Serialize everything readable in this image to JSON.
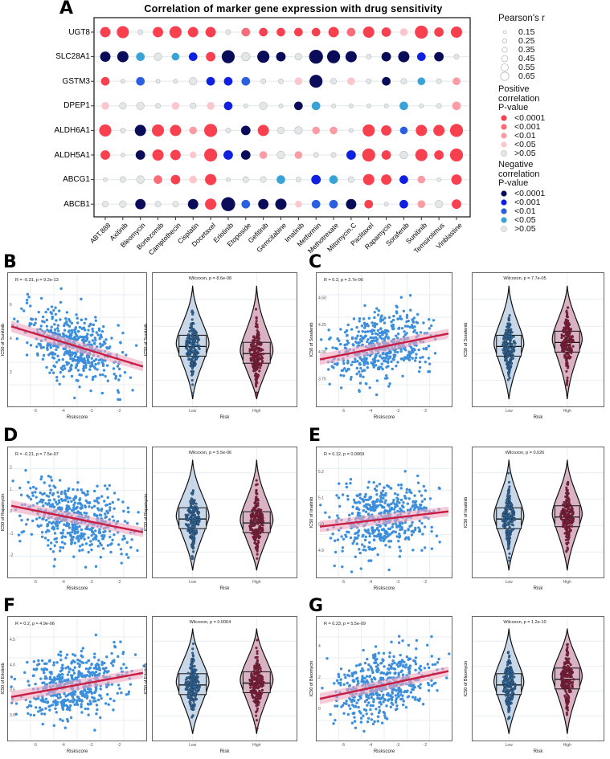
{
  "panel_letters": [
    "A",
    "B",
    "C",
    "D",
    "E",
    "F",
    "G"
  ],
  "colors": {
    "P4": "#f8404f",
    "P3": "#f96c78",
    "P2": "#fb9ca4",
    "P1": "#fcc7cc",
    "ns": "#e3e7e8",
    "N4": "#0a0c5a",
    "N3": "#1020e0",
    "N2": "#2a5fe0",
    "N1": "#3aa3d6",
    "low_fill": "#c8d8e8",
    "low_point": "#2d6aa3",
    "high_fill": "#d9b2c3",
    "high_point": "#8e1a3c",
    "scatter_point": "#3d8fdc",
    "reg_line": "#c81e45",
    "reg_band": "#f0a8c0"
  },
  "chart_data": [
    {
      "type": "dot-matrix",
      "title": "Correlation of marker gene expression with drug sensitivity",
      "genes": [
        "UGT8",
        "SLC28A1",
        "GSTM3",
        "DPEP1",
        "ALDH6A1",
        "ALDH5A1",
        "ABCG1",
        "ABCB1"
      ],
      "drugs": [
        "ABT.888",
        "Axitinib",
        "Bleomycin",
        "Bortezomib",
        "Camptothecin",
        "Cisplatin",
        "Docetaxel",
        "Erlotinib",
        "Etoposide",
        "Gefitinib",
        "Gemcitabine",
        "Imatinib",
        "Metformin",
        "Methotrexate",
        "Mitomycin.C",
        "Paclitaxel",
        "Rapamycin",
        "Sorafenib",
        "Sunitinib",
        "Temsirolimus",
        "Vinblastine"
      ],
      "cells": [
        [
          [
            "P4",
            0.45
          ],
          [
            "P4",
            0.55
          ],
          [
            "ns",
            0.15
          ],
          [
            "P4",
            0.45
          ],
          [
            "P4",
            0.55
          ],
          [
            "P4",
            0.45
          ],
          [
            "P4",
            0.45
          ],
          [
            "ns",
            0.15
          ],
          [
            "P3",
            0.35
          ],
          [
            "P4",
            0.35
          ],
          [
            "P4",
            0.35
          ],
          [
            "P4",
            0.35
          ],
          [
            "P4",
            0.35
          ],
          [
            "P4",
            0.45
          ],
          [
            "P3",
            0.35
          ],
          [
            "P4",
            0.5
          ],
          [
            "P4",
            0.4
          ],
          [
            "P1",
            0.3
          ],
          [
            "P4",
            0.6
          ],
          [
            "P4",
            0.4
          ],
          [
            "P4",
            0.5
          ]
        ],
        [
          [
            "N4",
            0.45
          ],
          [
            "N4",
            0.5
          ],
          [
            "N1",
            0.35
          ],
          [
            "ns",
            0.3
          ],
          [
            "N1",
            0.3
          ],
          [
            "N3",
            0.35
          ],
          [
            "P4",
            0.4
          ],
          [
            "N4",
            0.6
          ],
          [
            "ns",
            0.35
          ],
          [
            "N4",
            0.55
          ],
          [
            "N4",
            0.4
          ],
          [
            "ns",
            0.25
          ],
          [
            "N4",
            0.65
          ],
          [
            "N4",
            0.6
          ],
          [
            "N4",
            0.5
          ],
          [
            "ns",
            0.15
          ],
          [
            "N4",
            0.4
          ],
          [
            "N4",
            0.5
          ],
          [
            "N3",
            0.35
          ],
          [
            "N4",
            0.4
          ],
          [
            "ns",
            0.15
          ]
        ],
        [
          [
            "P4",
            0.35
          ],
          [
            "ns",
            0.1
          ],
          [
            "N2",
            0.35
          ],
          [
            "ns",
            0.1
          ],
          [
            "ns",
            0.1
          ],
          [
            "ns",
            0.3
          ],
          [
            "N3",
            0.35
          ],
          [
            "N3",
            0.35
          ],
          [
            "N2",
            0.35
          ],
          [
            "ns",
            0.15
          ],
          [
            "ns",
            0.15
          ],
          [
            "P1",
            0.3
          ],
          [
            "N4",
            0.6
          ],
          [
            "ns",
            0.2
          ],
          [
            "P1",
            0.3
          ],
          [
            "ns",
            0.15
          ],
          [
            "N4",
            0.35
          ],
          [
            "ns",
            0.2
          ],
          [
            "N1",
            0.3
          ],
          [
            "ns",
            0.15
          ],
          [
            "P2",
            0.3
          ]
        ],
        [
          [
            "P1",
            0.3
          ],
          [
            "ns",
            0.25
          ],
          [
            "ns",
            0.3
          ],
          [
            "ns",
            0.15
          ],
          [
            "P1",
            0.3
          ],
          [
            "ns",
            0.2
          ],
          [
            "P1",
            0.3
          ],
          [
            "N3",
            0.35
          ],
          [
            "ns",
            0.1
          ],
          [
            "ns",
            0.3
          ],
          [
            "ns",
            0.1
          ],
          [
            "N4",
            0.35
          ],
          [
            "N1",
            0.35
          ],
          [
            "ns",
            0.1
          ],
          [
            "ns",
            0.1
          ],
          [
            "ns",
            0.1
          ],
          [
            "ns",
            0.1
          ],
          [
            "N1",
            0.35
          ],
          [
            "ns",
            0.1
          ],
          [
            "ns",
            0.15
          ],
          [
            "P2",
            0.35
          ]
        ],
        [
          [
            "P4",
            0.55
          ],
          [
            "ns",
            0.15
          ],
          [
            "N4",
            0.5
          ],
          [
            "P4",
            0.55
          ],
          [
            "P4",
            0.5
          ],
          [
            "P2",
            0.3
          ],
          [
            "P4",
            0.6
          ],
          [
            "ns",
            0.15
          ],
          [
            "N4",
            0.4
          ],
          [
            "P4",
            0.5
          ],
          [
            "ns",
            0.25
          ],
          [
            "ns",
            0.3
          ],
          [
            "P2",
            0.3
          ],
          [
            "P2",
            0.3
          ],
          [
            "ns",
            0.1
          ],
          [
            "P4",
            0.55
          ],
          [
            "P4",
            0.45
          ],
          [
            "N2",
            0.3
          ],
          [
            "P4",
            0.5
          ],
          [
            "P4",
            0.5
          ],
          [
            "P4",
            0.6
          ]
        ],
        [
          [
            "P4",
            0.4
          ],
          [
            "ns",
            0.1
          ],
          [
            "N4",
            0.4
          ],
          [
            "P4",
            0.5
          ],
          [
            "P4",
            0.45
          ],
          [
            "P1",
            0.25
          ],
          [
            "P4",
            0.6
          ],
          [
            "N3",
            0.4
          ],
          [
            "N4",
            0.4
          ],
          [
            "P2",
            0.3
          ],
          [
            "ns",
            0.3
          ],
          [
            "P2",
            0.3
          ],
          [
            "ns",
            0.15
          ],
          [
            "ns",
            0.15
          ],
          [
            "N3",
            0.4
          ],
          [
            "P4",
            0.6
          ],
          [
            "P4",
            0.4
          ],
          [
            "ns",
            0.3
          ],
          [
            "P4",
            0.55
          ],
          [
            "P4",
            0.4
          ],
          [
            "P4",
            0.6
          ]
        ],
        [
          [
            "ns",
            0.1
          ],
          [
            "ns",
            0.2
          ],
          [
            "ns",
            0.3
          ],
          [
            "P3",
            0.35
          ],
          [
            "P4",
            0.4
          ],
          [
            "P1",
            0.3
          ],
          [
            "P4",
            0.5
          ],
          [
            "ns",
            0.1
          ],
          [
            "ns",
            0.2
          ],
          [
            "ns",
            0.2
          ],
          [
            "N1",
            0.35
          ],
          [
            "ns",
            0.15
          ],
          [
            "N3",
            0.4
          ],
          [
            "N1",
            0.35
          ],
          [
            "ns",
            0.2
          ],
          [
            "P4",
            0.5
          ],
          [
            "P4",
            0.45
          ],
          [
            "N3",
            0.35
          ],
          [
            "P2",
            0.3
          ],
          [
            "ns",
            0.1
          ],
          [
            "P4",
            0.45
          ]
        ],
        [
          [
            "ns",
            0.2
          ],
          [
            "ns",
            0.25
          ],
          [
            "N4",
            0.45
          ],
          [
            "ns",
            0.2
          ],
          [
            "ns",
            0.2
          ],
          [
            "N4",
            0.45
          ],
          [
            "P4",
            0.5
          ],
          [
            "N4",
            0.65
          ],
          [
            "N2",
            0.35
          ],
          [
            "N4",
            0.45
          ],
          [
            "N4",
            0.5
          ],
          [
            "P1",
            0.25
          ],
          [
            "N2",
            0.35
          ],
          [
            "N2",
            0.35
          ],
          [
            "N4",
            0.45
          ],
          [
            "P4",
            0.35
          ],
          [
            "ns",
            0.1
          ],
          [
            "N3",
            0.35
          ],
          [
            "P2",
            0.3
          ],
          [
            "ns",
            0.3
          ],
          [
            "P4",
            0.4
          ]
        ]
      ],
      "legend": {
        "size_title": "Pearson's r",
        "sizes": [
          {
            "label": "0.15",
            "r": 0.15
          },
          {
            "label": "0.25",
            "r": 0.25
          },
          {
            "label": "0.35",
            "r": 0.35
          },
          {
            "label": "0.45",
            "r": 0.45
          },
          {
            "label": "0.55",
            "r": 0.55
          },
          {
            "label": "0.65",
            "r": 0.65
          }
        ],
        "pos_title": [
          "Positive",
          "correlation",
          "P-value"
        ],
        "pos": [
          {
            "label": "<0.0001",
            "c": "P4"
          },
          {
            "label": "<0.001",
            "c": "P3"
          },
          {
            "label": "<0.01",
            "c": "P2"
          },
          {
            "label": "<0.05",
            "c": "P1"
          },
          {
            "label": ">0.05",
            "c": "ns"
          }
        ],
        "neg_title": [
          "Negative",
          "correlation",
          "P-value"
        ],
        "neg": [
          {
            "label": "<0.0001",
            "c": "N4"
          },
          {
            "label": "<0.001",
            "c": "N3"
          },
          {
            "label": "<0.01",
            "c": "N2"
          },
          {
            "label": "<0.05",
            "c": "N1"
          },
          {
            "label": ">0.05",
            "c": "ns"
          }
        ]
      }
    },
    {
      "type": "scatter+violin",
      "panel": "B",
      "drug": "Sunitinib",
      "ylabel": "IC50 of Sunitinib",
      "xlabel": "Riskscore",
      "stat": "R = -0.31, p = 9.2e-13",
      "r": -0.31,
      "wilcoxon": "Wilcoxon, p = 8.6e-08",
      "risk_xlabel": "Risk",
      "groups": [
        "Low",
        "High"
      ],
      "yticks": [
        "2",
        "4",
        "6"
      ],
      "xticks": [
        "-5",
        "-4",
        "-3",
        "-2"
      ],
      "group_shift": -0.35
    },
    {
      "type": "scatter+violin",
      "panel": "C",
      "drug": "Sorafenib",
      "ylabel": "IC50 of Sorafenib",
      "xlabel": "Riskscore",
      "stat": "R = 0.2, p = 2.7e-06",
      "r": 0.2,
      "wilcoxon": "Wilcoxon, p = 7.7e-05",
      "risk_xlabel": "Risk",
      "groups": [
        "Low",
        "High"
      ],
      "yticks": [
        "3.75",
        "4.00",
        "4.25",
        "4.50"
      ],
      "xticks": [
        "-5",
        "-4",
        "-3",
        "-2"
      ],
      "group_shift": 0.2
    },
    {
      "type": "scatter+violin",
      "panel": "D",
      "drug": "Rapamycin",
      "ylabel": "IC50 of Rapamycin",
      "xlabel": "Riskscore",
      "stat": "R = -0.21, p = 7.5e-07",
      "r": -0.21,
      "wilcoxon": "Wilcoxon, p = 5.5e-06",
      "risk_xlabel": "Risk",
      "groups": [
        "Low",
        "High"
      ],
      "yticks": [
        "-2",
        "-1",
        "0",
        "1",
        "2"
      ],
      "xticks": [
        "-5",
        "-4",
        "-3",
        "-2"
      ],
      "group_shift": -0.2
    },
    {
      "type": "scatter+violin",
      "panel": "E",
      "drug": "Imatinib",
      "ylabel": "IC50 of Imatinib",
      "xlabel": "Riskscore",
      "stat": "R = 0.12, p = 0.0069",
      "r": 0.12,
      "wilcoxon": "Wilcoxon, p = 0.026",
      "risk_xlabel": "Risk",
      "groups": [
        "Low",
        "High"
      ],
      "yticks": [
        "4.9",
        "5.0",
        "5.1",
        "5.2"
      ],
      "xticks": [
        "-5",
        "-4",
        "-3",
        "-2"
      ],
      "group_shift": 0.1
    },
    {
      "type": "scatter+violin",
      "panel": "F",
      "drug": "Erlotinib",
      "ylabel": "IC50 of Erlotinib",
      "xlabel": "Riskscore",
      "stat": "R = 0.2, p = 4.9e-06",
      "r": 0.2,
      "wilcoxon": "Wilcoxon, p = 0.0064",
      "risk_xlabel": "Risk",
      "groups": [
        "Low",
        "High"
      ],
      "yticks": [
        "3.0",
        "3.5",
        "4.0",
        "4.5"
      ],
      "xticks": [
        "-5",
        "-4",
        "-3",
        "-2"
      ],
      "group_shift": 0.1
    },
    {
      "type": "scatter+violin",
      "panel": "G",
      "drug": "Bleomycin",
      "ylabel": "IC50 of Bleomycin",
      "xlabel": "Riskscore",
      "stat": "R = 0.23, p = 5.5e-09",
      "r": 0.23,
      "wilcoxon": "Wilcoxon, p = 1.2e-10",
      "risk_xlabel": "Risk",
      "groups": [
        "Low",
        "High"
      ],
      "yticks": [
        "0",
        "2",
        "4"
      ],
      "xticks": [
        "-5",
        "-4",
        "-3",
        "-2"
      ],
      "group_shift": 0.3
    }
  ]
}
